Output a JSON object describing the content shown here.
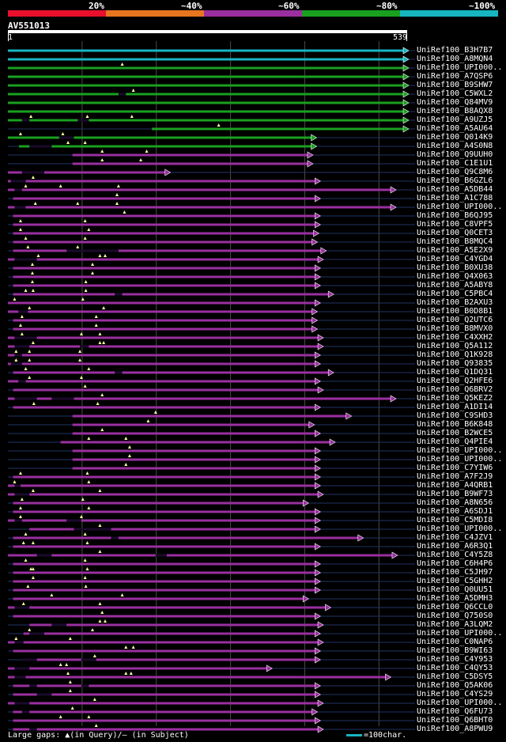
{
  "legend": {
    "percent_labels": [
      "20%",
      "~40%",
      "~60%",
      "~80%",
      "~100%"
    ],
    "colors": [
      "#e8102c",
      "#e87520",
      "#9a2fa0",
      "#1aa020",
      "#17b5c0"
    ]
  },
  "query": {
    "name": "AV551013",
    "start": "1",
    "end": "539"
  },
  "hits": [
    {
      "id": "UniRef100_B3H7B7",
      "c": 4,
      "s": 1,
      "e": 539,
      "gaps": [],
      "tri": []
    },
    {
      "id": "UniRef100_A8MQN4",
      "c": 4,
      "s": 1,
      "e": 539,
      "gaps": [],
      "tri": []
    },
    {
      "id": "UniRef100_UPI000..",
      "c": 3,
      "s": 1,
      "e": 539,
      "gaps": [],
      "tri": [
        155
      ]
    },
    {
      "id": "UniRef100_A7QSP6",
      "c": 3,
      "s": 1,
      "e": 539,
      "gaps": [],
      "tri": []
    },
    {
      "id": "UniRef100_B9SHW7",
      "c": 3,
      "s": 1,
      "e": 539,
      "gaps": [],
      "tri": []
    },
    {
      "id": "UniRef100_C5WXL2",
      "c": 3,
      "s": 1,
      "e": 539,
      "gaps": [
        [
          150,
          160
        ]
      ],
      "tri": [
        170
      ]
    },
    {
      "id": "UniRef100_Q84MV9",
      "c": 3,
      "s": 1,
      "e": 539,
      "gaps": [],
      "tri": []
    },
    {
      "id": "UniRef100_B8AQX8",
      "c": 3,
      "s": 1,
      "e": 539,
      "gaps": [],
      "tri": []
    },
    {
      "id": "UniRef100_A9UZJ5",
      "c": 3,
      "s": 1,
      "e": 539,
      "gaps": [
        [
          20,
          30
        ],
        [
          95,
          110
        ]
      ],
      "tri": [
        32,
        108,
        168
      ]
    },
    {
      "id": "UniRef100_A5AU64",
      "c": 3,
      "s": 195,
      "e": 539,
      "gaps": [],
      "tri": [
        285
      ]
    },
    {
      "id": "UniRef100_Q014K9",
      "c": 3,
      "s": 1,
      "e": 415,
      "gaps": [
        [
          70,
          90
        ]
      ],
      "tri": [
        18,
        75
      ]
    },
    {
      "id": "UniRef100_A4S0N8",
      "c": 3,
      "s": 16,
      "e": 415,
      "gaps": [
        [
          30,
          60
        ]
      ],
      "tri": [
        82,
        105
      ]
    },
    {
      "id": "UniRef100_Q9UUH0",
      "c": 2,
      "s": 88,
      "e": 410,
      "gaps": [],
      "tri": [
        128,
        188
      ]
    },
    {
      "id": "UniRef100_C1E1U1",
      "c": 2,
      "s": 88,
      "e": 410,
      "gaps": [],
      "tri": [
        128,
        180
      ]
    },
    {
      "id": "UniRef100_Q9C8M6",
      "c": 2,
      "s": 1,
      "e": 218,
      "gaps": [
        [
          20,
          50
        ]
      ],
      "tri": []
    },
    {
      "id": "UniRef100_B6GZL6",
      "c": 2,
      "s": 1,
      "e": 420,
      "gaps": [
        [
          5,
          25
        ]
      ],
      "tri": [
        35
      ]
    },
    {
      "id": "UniRef100_A5DB44",
      "c": 2,
      "s": 1,
      "e": 522,
      "gaps": [
        [
          10,
          20
        ]
      ],
      "tri": [
        25,
        72,
        150
      ]
    },
    {
      "id": "UniRef100_A1C788",
      "c": 2,
      "s": 8,
      "e": 420,
      "gaps": [],
      "tri": [
        148
      ]
    },
    {
      "id": "UniRef100_UPI000..",
      "c": 2,
      "s": 1,
      "e": 522,
      "gaps": [
        [
          10,
          25
        ]
      ],
      "tri": [
        38,
        95,
        148
      ]
    },
    {
      "id": "UniRef100_B6QJ95",
      "c": 2,
      "s": 8,
      "e": 420,
      "gaps": [],
      "tri": [
        158
      ]
    },
    {
      "id": "UniRef100_C8VPF5",
      "c": 2,
      "s": 8,
      "e": 420,
      "gaps": [],
      "tri": [
        18,
        105
      ]
    },
    {
      "id": "UniRef100_Q0CET3",
      "c": 2,
      "s": 8,
      "e": 418,
      "gaps": [],
      "tri": [
        18,
        110
      ]
    },
    {
      "id": "UniRef100_B8MQC4",
      "c": 2,
      "s": 8,
      "e": 416,
      "gaps": [],
      "tri": [
        25,
        105
      ]
    },
    {
      "id": "UniRef100_A5E2X9",
      "c": 2,
      "s": 8,
      "e": 428,
      "gaps": [
        [
          80,
          150
        ]
      ],
      "tri": [
        28,
        95
      ]
    },
    {
      "id": "UniRef100_C4YGD4",
      "c": 2,
      "s": 1,
      "e": 424,
      "gaps": [
        [
          10,
          40
        ]
      ],
      "tri": [
        42,
        125,
        132
      ]
    },
    {
      "id": "UniRef100_B0XU38",
      "c": 2,
      "s": 8,
      "e": 420,
      "gaps": [],
      "tri": [
        34,
        115
      ]
    },
    {
      "id": "UniRef100_Q4X063",
      "c": 2,
      "s": 8,
      "e": 420,
      "gaps": [],
      "tri": [
        34,
        115
      ]
    },
    {
      "id": "UniRef100_A5ABY8",
      "c": 2,
      "s": 8,
      "e": 420,
      "gaps": [],
      "tri": [
        34,
        106
      ]
    },
    {
      "id": "UniRef100_C5PBC4",
      "c": 2,
      "s": 8,
      "e": 438,
      "gaps": [
        [
          145,
          155
        ]
      ],
      "tri": [
        25,
        35,
        106
      ]
    },
    {
      "id": "UniRef100_B2AXU3",
      "c": 2,
      "s": 1,
      "e": 420,
      "gaps": [],
      "tri": [
        10,
        102
      ]
    },
    {
      "id": "UniRef100_B0D8B1",
      "c": 2,
      "s": 1,
      "e": 416,
      "gaps": [
        [
          15,
          28
        ]
      ],
      "tri": [
        30,
        130
      ]
    },
    {
      "id": "UniRef100_Q2UTC6",
      "c": 2,
      "s": 8,
      "e": 416,
      "gaps": [],
      "tri": [
        20,
        120
      ]
    },
    {
      "id": "UniRef100_B8MVX0",
      "c": 2,
      "s": 8,
      "e": 416,
      "gaps": [],
      "tri": [
        18,
        120
      ]
    },
    {
      "id": "UniRef100_C4XXH2",
      "c": 2,
      "s": 1,
      "e": 424,
      "gaps": [
        [
          10,
          40
        ]
      ],
      "tri": [
        20,
        100,
        125
      ]
    },
    {
      "id": "UniRef100_Q5A112",
      "c": 2,
      "s": 1,
      "e": 424,
      "gaps": [
        [
          10,
          30
        ],
        [
          98,
          110
        ]
      ],
      "tri": [
        35,
        125,
        130
      ]
    },
    {
      "id": "UniRef100_Q1K928",
      "c": 2,
      "s": 1,
      "e": 420,
      "gaps": [
        [
          10,
          20
        ]
      ],
      "tri": [
        12,
        30,
        98
      ]
    },
    {
      "id": "UniRef100_Q93835",
      "c": 2,
      "s": 1,
      "e": 420,
      "gaps": [
        [
          5,
          20
        ]
      ],
      "tri": [
        12,
        30,
        98
      ]
    },
    {
      "id": "UniRef100_Q1DQ31",
      "c": 2,
      "s": 8,
      "e": 438,
      "gaps": [
        [
          145,
          155
        ]
      ],
      "tri": [
        25,
        110
      ]
    },
    {
      "id": "UniRef100_Q2HFE6",
      "c": 2,
      "s": 1,
      "e": 420,
      "gaps": [
        [
          15,
          25
        ]
      ],
      "tri": [
        30,
        100
      ]
    },
    {
      "id": "UniRef100_Q6BRV2",
      "c": 2,
      "s": 8,
      "e": 424,
      "gaps": [],
      "tri": [
        105
      ]
    },
    {
      "id": "UniRef100_Q5KEZ2",
      "c": 2,
      "s": 1,
      "e": 522,
      "gaps": [
        [
          10,
          40
        ],
        [
          60,
          90
        ]
      ],
      "tri": [
        128
      ]
    },
    {
      "id": "UniRef100_A1DI14",
      "c": 2,
      "s": 8,
      "e": 420,
      "gaps": [],
      "tri": [
        36,
        122
      ]
    },
    {
      "id": "UniRef100_C9SHD3",
      "c": 2,
      "s": 88,
      "e": 462,
      "gaps": [],
      "tri": [
        200
      ]
    },
    {
      "id": "UniRef100_B6K848",
      "c": 2,
      "s": 88,
      "e": 412,
      "gaps": [],
      "tri": [
        190
      ]
    },
    {
      "id": "UniRef100_B2WCE5",
      "c": 2,
      "s": 88,
      "e": 420,
      "gaps": [],
      "tri": [
        128
      ]
    },
    {
      "id": "UniRef100_Q4PIE4",
      "c": 2,
      "s": 72,
      "e": 440,
      "gaps": [],
      "tri": [
        110,
        160
      ]
    },
    {
      "id": "UniRef100_UPI000..",
      "c": 2,
      "s": 88,
      "e": 420,
      "gaps": [],
      "tri": [
        165
      ]
    },
    {
      "id": "UniRef100_UPI000..",
      "c": 2,
      "s": 88,
      "e": 420,
      "gaps": [],
      "tri": [
        165
      ]
    },
    {
      "id": "UniRef100_C7YIW6",
      "c": 2,
      "s": 88,
      "e": 420,
      "gaps": [],
      "tri": [
        160
      ]
    },
    {
      "id": "UniRef100_A7F2J9",
      "c": 2,
      "s": 8,
      "e": 420,
      "gaps": [],
      "tri": [
        18,
        108
      ]
    },
    {
      "id": "UniRef100_A4QRB1",
      "c": 2,
      "s": 1,
      "e": 420,
      "gaps": [
        [
          10,
          18
        ]
      ],
      "tri": [
        10,
        110
      ]
    },
    {
      "id": "UniRef100_B9WF73",
      "c": 2,
      "s": 1,
      "e": 424,
      "gaps": [
        [
          10,
          30
        ]
      ],
      "tri": [
        35,
        125
      ]
    },
    {
      "id": "UniRef100_A8N656",
      "c": 2,
      "s": 8,
      "e": 404,
      "gaps": [],
      "tri": [
        20,
        102
      ]
    },
    {
      "id": "UniRef100_A6SDJ1",
      "c": 2,
      "s": 8,
      "e": 420,
      "gaps": [],
      "tri": [
        18,
        110
      ]
    },
    {
      "id": "UniRef100_C5MDI8",
      "c": 2,
      "s": 1,
      "e": 420,
      "gaps": [
        [
          10,
          20
        ],
        [
          80,
          100
        ]
      ],
      "tri": [
        18,
        100
      ]
    },
    {
      "id": "UniRef100_UPI000..",
      "c": 2,
      "s": 30,
      "e": 420,
      "gaps": [
        [
          90,
          140
        ]
      ],
      "tri": [
        125
      ]
    },
    {
      "id": "UniRef100_C4JZV1",
      "c": 2,
      "s": 8,
      "e": 478,
      "gaps": [
        [
          140,
          150
        ]
      ],
      "tri": [
        25,
        105
      ]
    },
    {
      "id": "UniRef100_A6R3Q1",
      "c": 2,
      "s": 8,
      "e": 420,
      "gaps": [],
      "tri": [
        22,
        35,
        108
      ]
    },
    {
      "id": "UniRef100_C4Y5Z8",
      "c": 2,
      "s": 1,
      "e": 524,
      "gaps": [
        [
          40,
          60
        ],
        [
          200,
          215
        ]
      ],
      "tri": [
        125
      ]
    },
    {
      "id": "UniRef100_C6H4P6",
      "c": 2,
      "s": 8,
      "e": 420,
      "gaps": [],
      "tri": [
        25,
        105
      ]
    },
    {
      "id": "UniRef100_C5JH97",
      "c": 2,
      "s": 8,
      "e": 420,
      "gaps": [],
      "tri": [
        32,
        35,
        108
      ]
    },
    {
      "id": "UniRef100_C5GHH2",
      "c": 2,
      "s": 8,
      "e": 420,
      "gaps": [],
      "tri": [
        35,
        105
      ]
    },
    {
      "id": "UniRef100_Q0UU51",
      "c": 2,
      "s": 8,
      "e": 420,
      "gaps": [],
      "tri": [
        28,
        106
      ]
    },
    {
      "id": "UniRef100_A5DMH3",
      "c": 2,
      "s": 8,
      "e": 404,
      "gaps": [],
      "tri": [
        60,
        155
      ]
    },
    {
      "id": "UniRef100_Q6CCL0",
      "c": 2,
      "s": 1,
      "e": 434,
      "gaps": [
        [
          10,
          30
        ]
      ],
      "tri": [
        22,
        125
      ]
    },
    {
      "id": "UniRef100_Q750S0",
      "c": 2,
      "s": 8,
      "e": 420,
      "gaps": [],
      "tri": [
        128
      ]
    },
    {
      "id": "UniRef100_A3LQM2",
      "c": 2,
      "s": 30,
      "e": 424,
      "gaps": [
        [
          60,
          80
        ]
      ],
      "tri": [
        125,
        132
      ]
    },
    {
      "id": "UniRef100_UPI000..",
      "c": 2,
      "s": 22,
      "e": 420,
      "gaps": [
        [
          30,
          50
        ]
      ],
      "tri": [
        30,
        115
      ]
    },
    {
      "id": "UniRef100_C0NAP6",
      "c": 2,
      "s": 1,
      "e": 424,
      "gaps": [
        [
          10,
          22
        ]
      ],
      "tri": [
        12,
        85
      ]
    },
    {
      "id": "UniRef100_B9WI63",
      "c": 2,
      "s": 8,
      "e": 420,
      "gaps": [],
      "tri": [
        160,
        170
      ]
    },
    {
      "id": "UniRef100_C4Y953",
      "c": 2,
      "s": 22,
      "e": 420,
      "gaps": [
        [
          20,
          40
        ],
        [
          100,
          120
        ]
      ],
      "tri": [
        118
      ]
    },
    {
      "id": "UniRef100_C4QY53",
      "c": 2,
      "s": 1,
      "e": 355,
      "gaps": [
        [
          10,
          30
        ]
      ],
      "tri": [
        72,
        80
      ]
    },
    {
      "id": "UniRef100_C5DSY5",
      "c": 2,
      "s": 1,
      "e": 515,
      "gaps": [
        [
          10,
          25
        ]
      ],
      "tri": [
        82,
        160,
        167
      ]
    },
    {
      "id": "UniRef100_Q5AK06",
      "c": 2,
      "s": 8,
      "e": 420,
      "gaps": [
        [
          30,
          40
        ],
        [
          100,
          110
        ]
      ],
      "tri": [
        85
      ]
    },
    {
      "id": "UniRef100_C4YS29",
      "c": 2,
      "s": 8,
      "e": 420,
      "gaps": [
        [
          40,
          60
        ]
      ],
      "tri": [
        85
      ]
    },
    {
      "id": "UniRef100_UPI000..",
      "c": 2,
      "s": 1,
      "e": 424,
      "gaps": [
        [
          10,
          30
        ]
      ],
      "tri": [
        118
      ]
    },
    {
      "id": "UniRef100_Q6FU73",
      "c": 2,
      "s": 8,
      "e": 416,
      "gaps": [
        [
          20,
          30
        ]
      ],
      "tri": [
        88
      ]
    },
    {
      "id": "UniRef100_Q6BHT0",
      "c": 2,
      "s": 8,
      "e": 420,
      "gaps": [],
      "tri": [
        72,
        110
      ]
    },
    {
      "id": "UniRef100_A8PWU9",
      "c": 2,
      "s": 8,
      "e": 424,
      "gaps": [
        [
          30,
          40
        ]
      ],
      "tri": [
        120
      ]
    }
  ],
  "footer": {
    "gaps_text": "Large gaps: ▲(in Query)/— (in Subject)",
    "scale_text": "=100char.",
    "scale_color": "#17b5c0"
  }
}
